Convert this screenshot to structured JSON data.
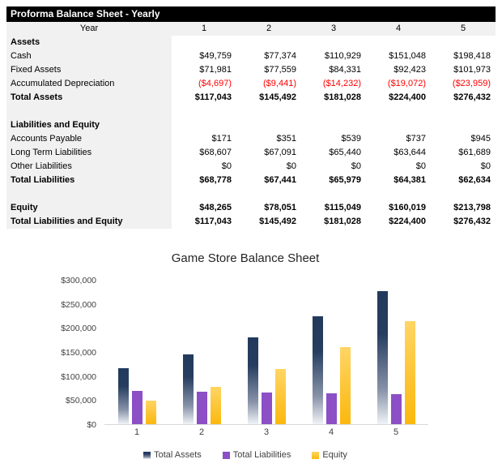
{
  "report": {
    "title": "Proforma Balance Sheet - Yearly",
    "year_label": "Year",
    "columns": [
      "1",
      "2",
      "3",
      "4",
      "5"
    ],
    "colors": {
      "header_bg": "#000000",
      "header_fg": "#FFFFFF",
      "label_column_bg": "#F1F1F1",
      "negative_value": "#FF0000"
    },
    "rows": [
      {
        "label": "Assets",
        "type": "section",
        "values": []
      },
      {
        "label": "Cash",
        "type": "data",
        "values": [
          "$49,759",
          "$77,374",
          "$110,929",
          "$151,048",
          "$198,418"
        ]
      },
      {
        "label": "Fixed Assets",
        "type": "data",
        "values": [
          "$71,981",
          "$77,559",
          "$84,331",
          "$92,423",
          "$101,973"
        ]
      },
      {
        "label": "Accumulated Depreciation",
        "type": "data-negative",
        "values": [
          "($4,697)",
          "($9,441)",
          "($14,232)",
          "($19,072)",
          "($23,959)"
        ]
      },
      {
        "label": "Total Assets",
        "type": "total",
        "values": [
          "$117,043",
          "$145,492",
          "$181,028",
          "$224,400",
          "$276,432"
        ]
      },
      {
        "label": "",
        "type": "spacer",
        "values": []
      },
      {
        "label": "Liabilities and Equity",
        "type": "section",
        "values": []
      },
      {
        "label": "Accounts Payable",
        "type": "data",
        "values": [
          "$171",
          "$351",
          "$539",
          "$737",
          "$945"
        ]
      },
      {
        "label": "Long Term Liabilities",
        "type": "data",
        "values": [
          "$68,607",
          "$67,091",
          "$65,440",
          "$63,644",
          "$61,689"
        ]
      },
      {
        "label": "Other Liabilities",
        "type": "data",
        "values": [
          "$0",
          "$0",
          "$0",
          "$0",
          "$0"
        ]
      },
      {
        "label": "Total Liabilities",
        "type": "total",
        "values": [
          "$68,778",
          "$67,441",
          "$65,979",
          "$64,381",
          "$62,634"
        ]
      },
      {
        "label": "",
        "type": "spacer",
        "values": []
      },
      {
        "label": "Equity",
        "type": "total",
        "values": [
          "$48,265",
          "$78,051",
          "$115,049",
          "$160,019",
          "$213,798"
        ]
      },
      {
        "label": "Total Liabilities and Equity",
        "type": "total",
        "values": [
          "$117,043",
          "$145,492",
          "$181,028",
          "$224,400",
          "$276,432"
        ]
      }
    ]
  },
  "chart_data": {
    "type": "bar",
    "title": "Game Store Balance Sheet",
    "categories": [
      "1",
      "2",
      "3",
      "4",
      "5"
    ],
    "series": [
      {
        "name": "Total Assets",
        "values": [
          117043,
          145492,
          181028,
          224400,
          276432
        ],
        "fill_stops": [
          [
            "#223A5C",
            0
          ],
          [
            "#263D60",
            32
          ],
          [
            "#8792A8",
            74
          ],
          [
            "#F0F3F7",
            100
          ]
        ]
      },
      {
        "name": "Total Liabilities",
        "values": [
          68778,
          67441,
          65979,
          64381,
          62634
        ],
        "fill_stops": [
          [
            "#8C4FC6",
            0
          ],
          [
            "#8C4FC6",
            100
          ]
        ]
      },
      {
        "name": "Equity",
        "values": [
          48265,
          78051,
          115049,
          160019,
          213798
        ],
        "fill_stops": [
          [
            "#FFD564",
            0
          ],
          [
            "#FBB80E",
            100
          ]
        ]
      }
    ],
    "xlabel": "",
    "ylabel": "",
    "ylim": [
      0,
      300000
    ],
    "ytick_step": 50000,
    "ytick_labels": [
      "$0",
      "$50,000",
      "$100,000",
      "$150,000",
      "$200,000",
      "$250,000",
      "$300,000"
    ],
    "grid": false,
    "legend_position": "bottom",
    "axis_line_color": "#D9D9D9"
  }
}
